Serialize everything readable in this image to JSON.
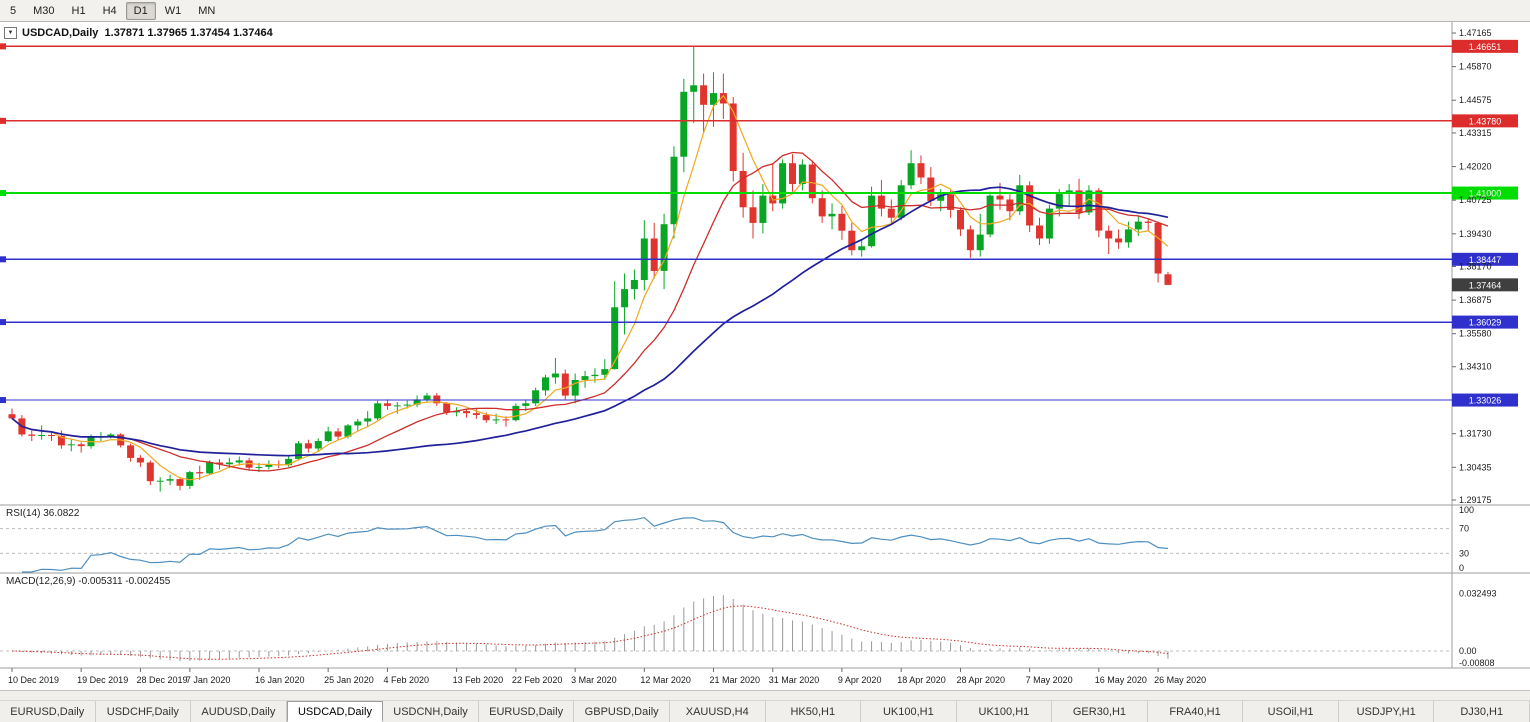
{
  "icons": {
    "collapse": "▼"
  },
  "colors": {
    "bull": "#09A626",
    "bear": "#E0352F",
    "ma_fast": "#EFA820",
    "ma_mid": "#CC2E2A",
    "ma_slow": "#20209A",
    "hline_red": "#DD2C2C",
    "hline_green": "#00DD00",
    "hline_blue": "#3030CC",
    "current_tag": "#3F3F3F",
    "rsi_line": "#4E8FC0",
    "level_dash": "#BDBDBD",
    "macd_hist": "#999999",
    "macd_signal": "#CC2E2A",
    "sep": "#9E9E9E",
    "axis_text": "#1A1A1A"
  },
  "toolbar": {
    "timeframes": [
      {
        "label": "5"
      },
      {
        "label": "M30"
      },
      {
        "label": "H1"
      },
      {
        "label": "H4"
      },
      {
        "label": "D1",
        "active": true
      },
      {
        "label": "W1"
      },
      {
        "label": "MN"
      }
    ]
  },
  "chart_data": {
    "type": "candlestick",
    "symbol": "USDCAD",
    "timeframe": "Daily",
    "title": "USDCAD,Daily  1.37871 1.37965 1.37454 1.37464",
    "ohlc_display": [
      "1.37871",
      "1.37965",
      "1.37454",
      "1.37464"
    ],
    "current_price": "1.37464",
    "price_axis_labels": [
      "1.47165",
      "1.45870",
      "1.44575",
      "1.43315",
      "1.42020",
      "1.40725",
      "1.39430",
      "1.38170",
      "1.36875",
      "1.35580",
      "1.34310",
      "1.31730",
      "1.30435",
      "1.29175"
    ],
    "hlines": [
      {
        "value": "1.46651",
        "color": "red"
      },
      {
        "value": "1.43780",
        "color": "red"
      },
      {
        "value": "1.41000",
        "color": "green"
      },
      {
        "value": "1.38447",
        "color": "blue"
      },
      {
        "value": "1.36029",
        "color": "blue"
      },
      {
        "value": "1.33026",
        "color": "blue"
      }
    ],
    "moving_averages": [
      {
        "period": 5,
        "color_key": "ma_fast"
      },
      {
        "period": 13,
        "color_key": "ma_mid"
      },
      {
        "period": 34,
        "color_key": "ma_slow"
      }
    ],
    "rsi": {
      "label": "RSI(14) 36.0822",
      "period": 14,
      "current": 36.0822,
      "axis_labels": [
        "100",
        "70",
        "30",
        "0"
      ],
      "levels": [
        70,
        30
      ]
    },
    "macd": {
      "label": "MACD(12,26,9) -0.005311 -0.002455",
      "params": [
        12,
        26,
        9
      ],
      "current": [
        -0.005311,
        -0.002455
      ],
      "axis_labels": [
        "0.032493",
        "0.00",
        "-0.00808"
      ]
    },
    "date_labels": [
      {
        "i": 0,
        "label": "10 Dec 2019"
      },
      {
        "i": 7,
        "label": "19 Dec 2019"
      },
      {
        "i": 13,
        "label": "28 Dec 2019"
      },
      {
        "i": 18,
        "label": "7 Jan 2020"
      },
      {
        "i": 25,
        "label": "16 Jan 2020"
      },
      {
        "i": 32,
        "label": "25 Jan 2020"
      },
      {
        "i": 38,
        "label": "4 Feb 2020"
      },
      {
        "i": 45,
        "label": "13 Feb 2020"
      },
      {
        "i": 51,
        "label": "22 Feb 2020"
      },
      {
        "i": 57,
        "label": "3 Mar 2020"
      },
      {
        "i": 64,
        "label": "12 Mar 2020"
      },
      {
        "i": 71,
        "label": "21 Mar 2020"
      },
      {
        "i": 77,
        "label": "31 Mar 2020"
      },
      {
        "i": 84,
        "label": "9 Apr 2020"
      },
      {
        "i": 90,
        "label": "18 Apr 2020"
      },
      {
        "i": 96,
        "label": "28 Apr 2020"
      },
      {
        "i": 103,
        "label": "7 May 2020"
      },
      {
        "i": 110,
        "label": "16 May 2020"
      },
      {
        "i": 116,
        "label": "26 May 2020"
      }
    ],
    "candles": [
      [
        1.3248,
        1.327,
        1.3228,
        1.3232
      ],
      [
        1.3232,
        1.3245,
        1.3162,
        1.317
      ],
      [
        1.317,
        1.3185,
        1.3145,
        1.3165
      ],
      [
        1.3165,
        1.3205,
        1.315,
        1.3168
      ],
      [
        1.3168,
        1.318,
        1.3145,
        1.3165
      ],
      [
        1.3165,
        1.3185,
        1.3115,
        1.3128
      ],
      [
        1.3128,
        1.315,
        1.3105,
        1.3132
      ],
      [
        1.3132,
        1.314,
        1.31,
        1.3125
      ],
      [
        1.3125,
        1.317,
        1.3115,
        1.316
      ],
      [
        1.316,
        1.318,
        1.3145,
        1.3162
      ],
      [
        1.3162,
        1.3175,
        1.3155,
        1.317
      ],
      [
        1.317,
        1.3175,
        1.312,
        1.3128
      ],
      [
        1.3128,
        1.3135,
        1.3065,
        1.308
      ],
      [
        1.308,
        1.309,
        1.3045,
        1.3062
      ],
      [
        1.3062,
        1.307,
        1.2975,
        1.299
      ],
      [
        1.299,
        1.3005,
        1.295,
        1.2992
      ],
      [
        1.2992,
        1.3015,
        1.2975,
        1.2998
      ],
      [
        1.2998,
        1.3005,
        1.2955,
        1.2972
      ],
      [
        1.2972,
        1.303,
        1.296,
        1.3025
      ],
      [
        1.3025,
        1.305,
        1.2995,
        1.302
      ],
      [
        1.302,
        1.307,
        1.3015,
        1.3062
      ],
      [
        1.3062,
        1.3075,
        1.3035,
        1.3055
      ],
      [
        1.3055,
        1.308,
        1.304,
        1.3062
      ],
      [
        1.3062,
        1.3085,
        1.305,
        1.307
      ],
      [
        1.307,
        1.308,
        1.303,
        1.3042
      ],
      [
        1.3042,
        1.306,
        1.3025,
        1.3045
      ],
      [
        1.3045,
        1.307,
        1.3035,
        1.3055
      ],
      [
        1.3055,
        1.307,
        1.304,
        1.3052
      ],
      [
        1.3052,
        1.3085,
        1.3045,
        1.3076
      ],
      [
        1.3076,
        1.3145,
        1.307,
        1.3136
      ],
      [
        1.3136,
        1.315,
        1.31,
        1.3116
      ],
      [
        1.3116,
        1.3155,
        1.3105,
        1.3145
      ],
      [
        1.3145,
        1.32,
        1.314,
        1.3182
      ],
      [
        1.3182,
        1.3195,
        1.315,
        1.3162
      ],
      [
        1.3162,
        1.321,
        1.3155,
        1.3205
      ],
      [
        1.3205,
        1.323,
        1.3185,
        1.322
      ],
      [
        1.322,
        1.326,
        1.32,
        1.3232
      ],
      [
        1.3232,
        1.33,
        1.3225,
        1.329
      ],
      [
        1.329,
        1.3305,
        1.3265,
        1.328
      ],
      [
        1.328,
        1.3295,
        1.325,
        1.3282
      ],
      [
        1.3282,
        1.33,
        1.327,
        1.3285
      ],
      [
        1.3285,
        1.332,
        1.3275,
        1.3305
      ],
      [
        1.3305,
        1.333,
        1.3295,
        1.332
      ],
      [
        1.332,
        1.333,
        1.328,
        1.329
      ],
      [
        1.329,
        1.3295,
        1.3245,
        1.3255
      ],
      [
        1.3255,
        1.3275,
        1.324,
        1.326
      ],
      [
        1.326,
        1.327,
        1.3235,
        1.3252
      ],
      [
        1.3252,
        1.327,
        1.323,
        1.3245
      ],
      [
        1.3245,
        1.3255,
        1.3215,
        1.3225
      ],
      [
        1.3225,
        1.325,
        1.321,
        1.3228
      ],
      [
        1.3228,
        1.324,
        1.32,
        1.3225
      ],
      [
        1.3225,
        1.329,
        1.322,
        1.328
      ],
      [
        1.328,
        1.3305,
        1.326,
        1.329
      ],
      [
        1.329,
        1.335,
        1.328,
        1.334
      ],
      [
        1.334,
        1.34,
        1.332,
        1.339
      ],
      [
        1.339,
        1.3465,
        1.3365,
        1.3405
      ],
      [
        1.3405,
        1.342,
        1.3305,
        1.332
      ],
      [
        1.332,
        1.3405,
        1.329,
        1.338
      ],
      [
        1.338,
        1.3415,
        1.335,
        1.3395
      ],
      [
        1.3395,
        1.3425,
        1.337,
        1.34
      ],
      [
        1.34,
        1.346,
        1.338,
        1.3422
      ],
      [
        1.3422,
        1.376,
        1.342,
        1.366
      ],
      [
        1.366,
        1.379,
        1.3555,
        1.373
      ],
      [
        1.373,
        1.3805,
        1.369,
        1.3765
      ],
      [
        1.3765,
        1.3995,
        1.3725,
        1.3925
      ],
      [
        1.3925,
        1.3985,
        1.377,
        1.38
      ],
      [
        1.38,
        1.402,
        1.373,
        1.398
      ],
      [
        1.398,
        1.428,
        1.3925,
        1.424
      ],
      [
        1.424,
        1.454,
        1.418,
        1.449
      ],
      [
        1.449,
        1.4668,
        1.437,
        1.4515
      ],
      [
        1.4515,
        1.456,
        1.433,
        1.444
      ],
      [
        1.444,
        1.4565,
        1.4355,
        1.4485
      ],
      [
        1.4485,
        1.456,
        1.4385,
        1.4445
      ],
      [
        1.4445,
        1.447,
        1.4145,
        1.4185
      ],
      [
        1.4185,
        1.4255,
        1.4005,
        1.4045
      ],
      [
        1.4045,
        1.411,
        1.3925,
        1.3985
      ],
      [
        1.3985,
        1.4135,
        1.3945,
        1.409
      ],
      [
        1.409,
        1.4215,
        1.403,
        1.406
      ],
      [
        1.406,
        1.423,
        1.404,
        1.4215
      ],
      [
        1.4215,
        1.425,
        1.4105,
        1.4135
      ],
      [
        1.4135,
        1.423,
        1.411,
        1.421
      ],
      [
        1.421,
        1.4225,
        1.406,
        1.408
      ],
      [
        1.408,
        1.411,
        1.3985,
        1.401
      ],
      [
        1.401,
        1.406,
        1.396,
        1.402
      ],
      [
        1.402,
        1.405,
        1.392,
        1.3955
      ],
      [
        1.3955,
        1.3985,
        1.386,
        1.388
      ],
      [
        1.388,
        1.392,
        1.3855,
        1.3895
      ],
      [
        1.3895,
        1.4125,
        1.389,
        1.409
      ],
      [
        1.409,
        1.415,
        1.401,
        1.404
      ],
      [
        1.404,
        1.4075,
        1.3985,
        1.4005
      ],
      [
        1.4005,
        1.415,
        1.3995,
        1.413
      ],
      [
        1.413,
        1.4265,
        1.4115,
        1.4215
      ],
      [
        1.4215,
        1.4245,
        1.4135,
        1.416
      ],
      [
        1.416,
        1.42,
        1.405,
        1.407
      ],
      [
        1.407,
        1.4115,
        1.403,
        1.4095
      ],
      [
        1.4095,
        1.411,
        1.4005,
        1.4035
      ],
      [
        1.4035,
        1.4045,
        1.3935,
        1.396
      ],
      [
        1.396,
        1.3975,
        1.385,
        1.388
      ],
      [
        1.388,
        1.402,
        1.3855,
        1.394
      ],
      [
        1.394,
        1.4105,
        1.393,
        1.409
      ],
      [
        1.409,
        1.414,
        1.4035,
        1.4075
      ],
      [
        1.4075,
        1.4095,
        1.3995,
        1.403
      ],
      [
        1.403,
        1.417,
        1.4015,
        1.413
      ],
      [
        1.413,
        1.4145,
        1.395,
        1.3975
      ],
      [
        1.3975,
        1.4005,
        1.39,
        1.3925
      ],
      [
        1.3925,
        1.4055,
        1.3905,
        1.404
      ],
      [
        1.404,
        1.4115,
        1.401,
        1.41
      ],
      [
        1.41,
        1.4135,
        1.405,
        1.411
      ],
      [
        1.411,
        1.4155,
        1.4,
        1.4025
      ],
      [
        1.4025,
        1.413,
        1.4015,
        1.411
      ],
      [
        1.411,
        1.412,
        1.393,
        1.3955
      ],
      [
        1.3955,
        1.3975,
        1.3865,
        1.3925
      ],
      [
        1.3925,
        1.396,
        1.3885,
        1.391
      ],
      [
        1.391,
        1.399,
        1.389,
        1.396
      ],
      [
        1.396,
        1.401,
        1.3935,
        1.399
      ],
      [
        1.399,
        1.4,
        1.3955,
        1.3985
      ],
      [
        1.3985,
        1.399,
        1.3755,
        1.379
      ],
      [
        1.37871,
        1.37965,
        1.37454,
        1.37464
      ]
    ]
  },
  "tabbar": {
    "tabs": [
      {
        "label": "EURUSD,Daily"
      },
      {
        "label": "USDCHF,Daily"
      },
      {
        "label": "AUDUSD,Daily"
      },
      {
        "label": "USDCAD,Daily",
        "active": true
      },
      {
        "label": "USDCNH,Daily"
      },
      {
        "label": "EURUSD,Daily"
      },
      {
        "label": "GBPUSD,Daily"
      },
      {
        "label": "XAUUSD,H4"
      },
      {
        "label": "HK50,H1"
      },
      {
        "label": "UK100,H1"
      },
      {
        "label": "UK100,H1"
      },
      {
        "label": "GER30,H1"
      },
      {
        "label": "FRA40,H1"
      },
      {
        "label": "USOil,H1"
      },
      {
        "label": "USDJPY,H1"
      },
      {
        "label": "DJ30,H1"
      }
    ]
  }
}
